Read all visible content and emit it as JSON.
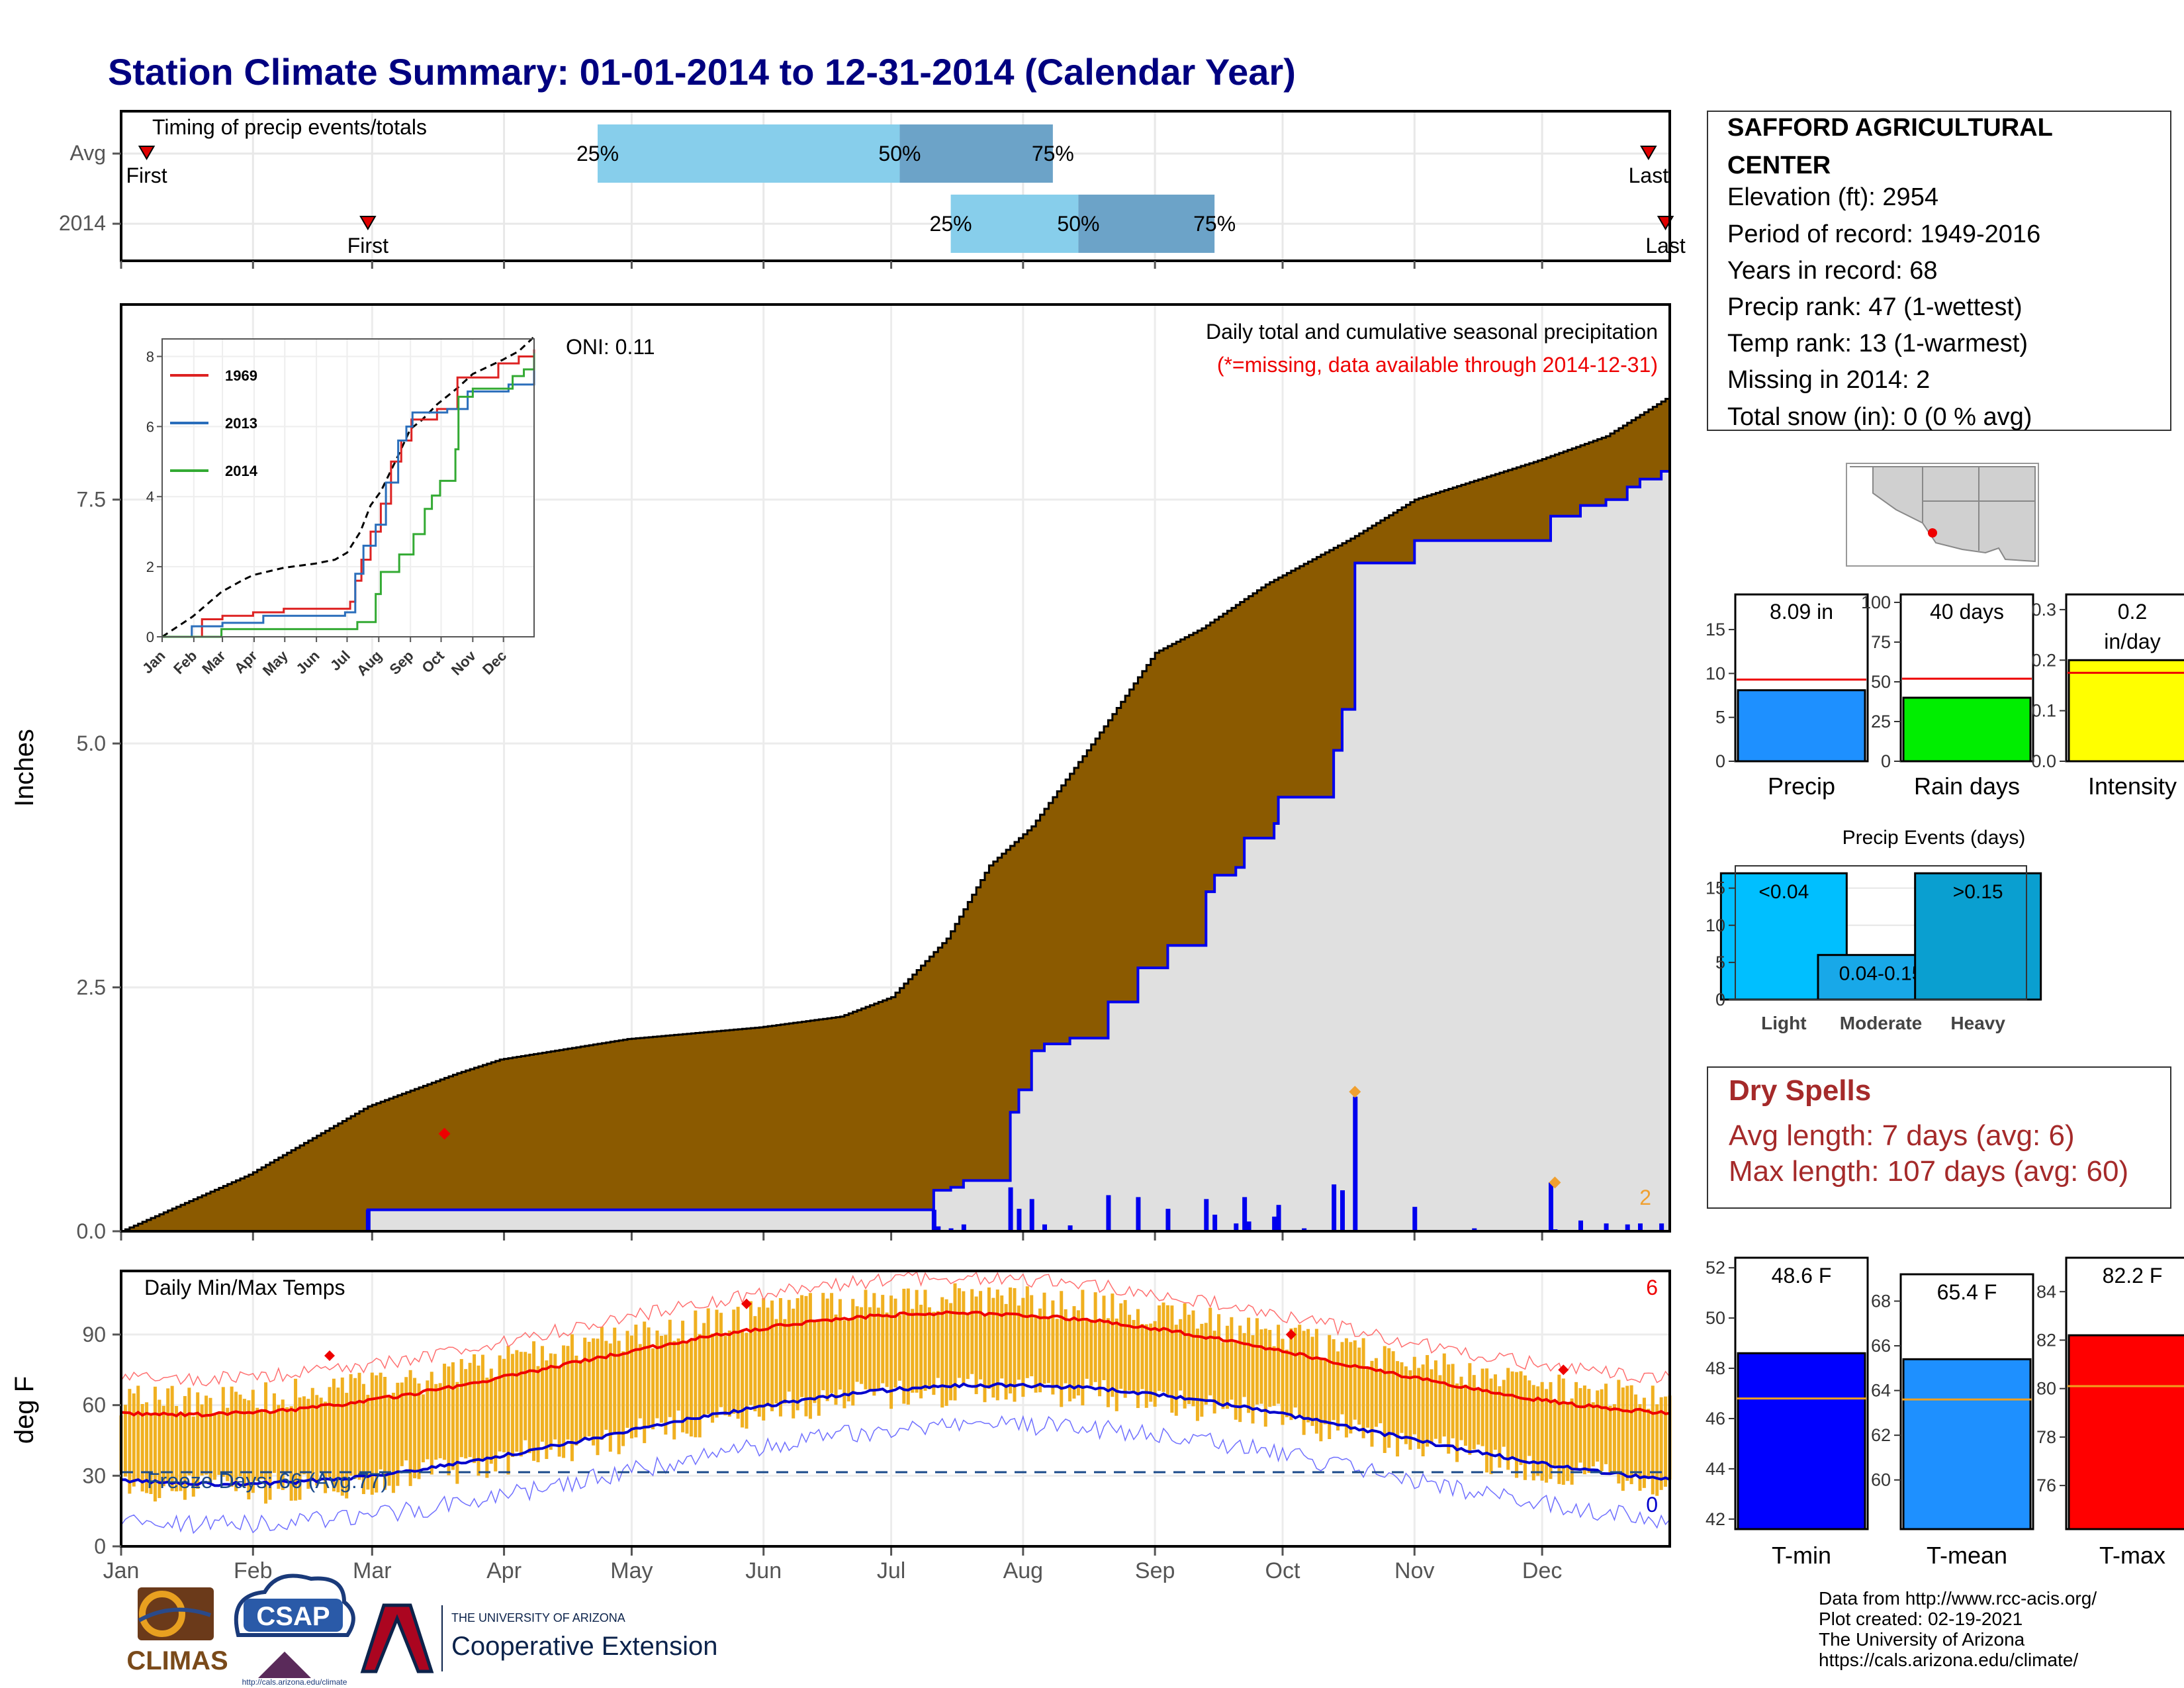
{
  "title": "Station Climate Summary: 01-01-2014 to 12-31-2014 (Calendar Year)",
  "months": [
    "Jan",
    "Feb",
    "Mar",
    "Apr",
    "May",
    "Jun",
    "Jul",
    "Aug",
    "Sep",
    "Oct",
    "Nov",
    "Dec"
  ],
  "timing": {
    "title": "Timing of precip events/totals",
    "rows": [
      {
        "label": "Avg",
        "first_doy": 7,
        "first_label": "First",
        "last_doy": 360,
        "last_label": "Last",
        "p25_doy": 113,
        "p50_doy": 184,
        "p75_doy": 220
      },
      {
        "label": "2014",
        "first_doy": 59,
        "first_label": "First",
        "last_doy": 364,
        "last_label": "Last",
        "p25_doy": 196,
        "p50_doy": 226,
        "p75_doy": 258
      }
    ],
    "pct_labels": [
      "25%",
      "50%",
      "75%"
    ],
    "colors": {
      "light": "#87ceeb",
      "dark": "#6ca3c8",
      "marker": "#e00000"
    }
  },
  "precip": {
    "ylabel": "Inches",
    "yticks": [
      0,
      2.5,
      5,
      7.5
    ],
    "ymax": 9.5,
    "title": "Daily total and cumulative seasonal precipitation",
    "note": "(*=missing, data available through 2014-12-31)",
    "oni": "ONI: 0.11",
    "missing_count": "2",
    "avg_cum_points": [
      [
        1,
        0
      ],
      [
        31,
        0.58
      ],
      [
        59,
        1.28
      ],
      [
        80,
        1.62
      ],
      [
        90,
        1.76
      ],
      [
        120,
        1.97
      ],
      [
        151,
        2.09
      ],
      [
        170,
        2.2
      ],
      [
        182,
        2.4
      ],
      [
        195,
        3.0
      ],
      [
        205,
        3.75
      ],
      [
        215,
        4.15
      ],
      [
        230,
        5.05
      ],
      [
        244,
        5.93
      ],
      [
        255,
        6.18
      ],
      [
        270,
        6.63
      ],
      [
        290,
        7.1
      ],
      [
        305,
        7.5
      ],
      [
        334,
        7.9
      ],
      [
        350,
        8.15
      ],
      [
        365,
        8.56
      ]
    ],
    "cum_2014_steps": [
      [
        59,
        0.22
      ],
      [
        192,
        0.42
      ],
      [
        196,
        0.45
      ],
      [
        199,
        0.52
      ],
      [
        210,
        1.22
      ],
      [
        212,
        1.45
      ],
      [
        215,
        1.85
      ],
      [
        218,
        1.92
      ],
      [
        224,
        1.98
      ],
      [
        233,
        2.35
      ],
      [
        240,
        2.7
      ],
      [
        247,
        2.93
      ],
      [
        256,
        3.48
      ],
      [
        258,
        3.65
      ],
      [
        263,
        3.73
      ],
      [
        265,
        4.03
      ],
      [
        272,
        4.18
      ],
      [
        273,
        4.45
      ],
      [
        286,
        4.93
      ],
      [
        288,
        5.35
      ],
      [
        291,
        6.85
      ],
      [
        305,
        7.08
      ],
      [
        337,
        7.33
      ],
      [
        344,
        7.44
      ],
      [
        350,
        7.5
      ],
      [
        355,
        7.63
      ],
      [
        358,
        7.71
      ],
      [
        363,
        7.79
      ],
      [
        365,
        8.09
      ]
    ],
    "daily_bars": [
      [
        59,
        0.22
      ],
      [
        192,
        0.22
      ],
      [
        193,
        0.05
      ],
      [
        196,
        0.03
      ],
      [
        199,
        0.07
      ],
      [
        210,
        0.45
      ],
      [
        212,
        0.23
      ],
      [
        215,
        0.33
      ],
      [
        218,
        0.07
      ],
      [
        224,
        0.06
      ],
      [
        233,
        0.37
      ],
      [
        240,
        0.35
      ],
      [
        247,
        0.23
      ],
      [
        256,
        0.33
      ],
      [
        258,
        0.17
      ],
      [
        263,
        0.08
      ],
      [
        265,
        0.35
      ],
      [
        266,
        0.1
      ],
      [
        272,
        0.15
      ],
      [
        273,
        0.27
      ],
      [
        279,
        0.03
      ],
      [
        286,
        0.48
      ],
      [
        288,
        0.42
      ],
      [
        291,
        1.38
      ],
      [
        305,
        0.25
      ],
      [
        319,
        0.03
      ],
      [
        337,
        0.5
      ],
      [
        338,
        0.02
      ],
      [
        344,
        0.11
      ],
      [
        350,
        0.08
      ],
      [
        355,
        0.07
      ],
      [
        358,
        0.08
      ],
      [
        363,
        0.08
      ]
    ],
    "markers_orange": [
      [
        291,
        1.43
      ],
      [
        338,
        0.5
      ]
    ],
    "marker_red": [
      [
        77,
        1.0
      ]
    ],
    "colors": {
      "avg_fill": "#8b5a00",
      "obs_fill": "#e0e0e0",
      "line": "#0000ee"
    }
  },
  "inset": {
    "yticks": [
      0,
      2,
      4,
      6,
      8
    ],
    "ymax": 8.5,
    "legend": [
      "1969",
      "2013",
      "2014"
    ],
    "colors": [
      "#dd2222",
      "#2a6ebb",
      "#33aa33"
    ]
  },
  "temps": {
    "title": "Daily Min/Max Temps",
    "ylabel": "deg F",
    "yticks": [
      0,
      30,
      60,
      90
    ],
    "ymin": 0,
    "ymax": 117,
    "freeze_label": "Freeze Days: 66 (Avg:77)",
    "freeze_line": 31.5,
    "count_top": "6",
    "count_bottom": "0",
    "max_record_markers": [
      [
        50,
        81
      ],
      [
        148,
        103
      ],
      [
        276,
        90
      ],
      [
        340,
        75
      ]
    ],
    "colors": {
      "bar": "#f0b020",
      "max": "#ee0000",
      "min": "#0000cc"
    }
  },
  "station": {
    "name1": "SAFFORD AGRICULTURAL",
    "name2": "CENTER",
    "lines": [
      "Elevation (ft): 2954",
      "Period of record: 1949-2016",
      "Years in record: 68",
      "Precip rank: 47 (1-wettest)",
      "Temp rank: 13 (1-warmest)",
      "Missing in 2014: 2",
      "Total snow (in): 0 (0 % avg)"
    ]
  },
  "precip_bars": [
    {
      "label": "Precip",
      "value": 8.09,
      "value_label": "8.09 in",
      "avg": 9.3,
      "max": 19,
      "ticks": [
        0,
        5,
        10,
        15
      ],
      "color": "#1e90ff"
    },
    {
      "label": "Rain days",
      "value": 40,
      "value_label": "40 days",
      "avg": 52,
      "max": 105,
      "ticks": [
        0,
        25,
        50,
        75,
        100
      ],
      "color": "#00ee00"
    },
    {
      "label": "Intensity",
      "value": 0.2,
      "value_label": "0.2",
      "value_label2": "in/day",
      "avg": 0.175,
      "max": 0.33,
      "ticks": [
        0.0,
        0.1,
        0.2,
        0.3
      ],
      "color": "#ffff00"
    }
  ],
  "events": {
    "title": "Precip Events (days)",
    "max": 18,
    "ticks": [
      0,
      5,
      10,
      15
    ],
    "bars": [
      {
        "label": "Light",
        "value": 17,
        "bar_label": "<0.04",
        "color": "#00bfff"
      },
      {
        "label": "Moderate",
        "value": 6,
        "bar_label": "0.04-0.15",
        "color": "#18a8e8"
      },
      {
        "label": "Heavy",
        "value": 17,
        "bar_label": ">0.15",
        "color": "#0a9fd0"
      }
    ]
  },
  "dry_spells": {
    "title": "Dry Spells",
    "line1": "Avg length: 7 days (avg: 6)",
    "line2": "Max length: 107 days (avg: 60)",
    "color": "#a52a2a"
  },
  "temp_bars": [
    {
      "label": "T-min",
      "value": 48.6,
      "value_label": "48.6 F",
      "avg": 46.8,
      "min": 41.6,
      "max": 52.4,
      "ticks": [
        42,
        44,
        46,
        48,
        50,
        52
      ],
      "color": "#0000ff"
    },
    {
      "label": "T-mean",
      "value": 65.4,
      "value_label": "65.4 F",
      "avg": 63.6,
      "min": 57.8,
      "max": 69.2,
      "ticks": [
        60,
        62,
        64,
        66,
        68
      ],
      "color": "#1e90ff"
    },
    {
      "label": "T-max",
      "value": 82.2,
      "value_label": "82.2 F",
      "avg": 80.1,
      "min": 74.2,
      "max": 85.4,
      "ticks": [
        76,
        78,
        80,
        82,
        84
      ],
      "color": "#ff0000"
    }
  ],
  "footer": {
    "lines": [
      "Data from http://www.rcc-acis.org/",
      "Plot created: 02-19-2021",
      "The University of Arizona",
      "https://cals.arizona.edu/climate/"
    ],
    "climas": "CLIMAS",
    "csap": "CSAP",
    "csap_url": "http://cals.arizona.edu/climate",
    "ua_small": "THE UNIVERSITY OF ARIZONA",
    "ua_big": "Cooperative Extension"
  }
}
